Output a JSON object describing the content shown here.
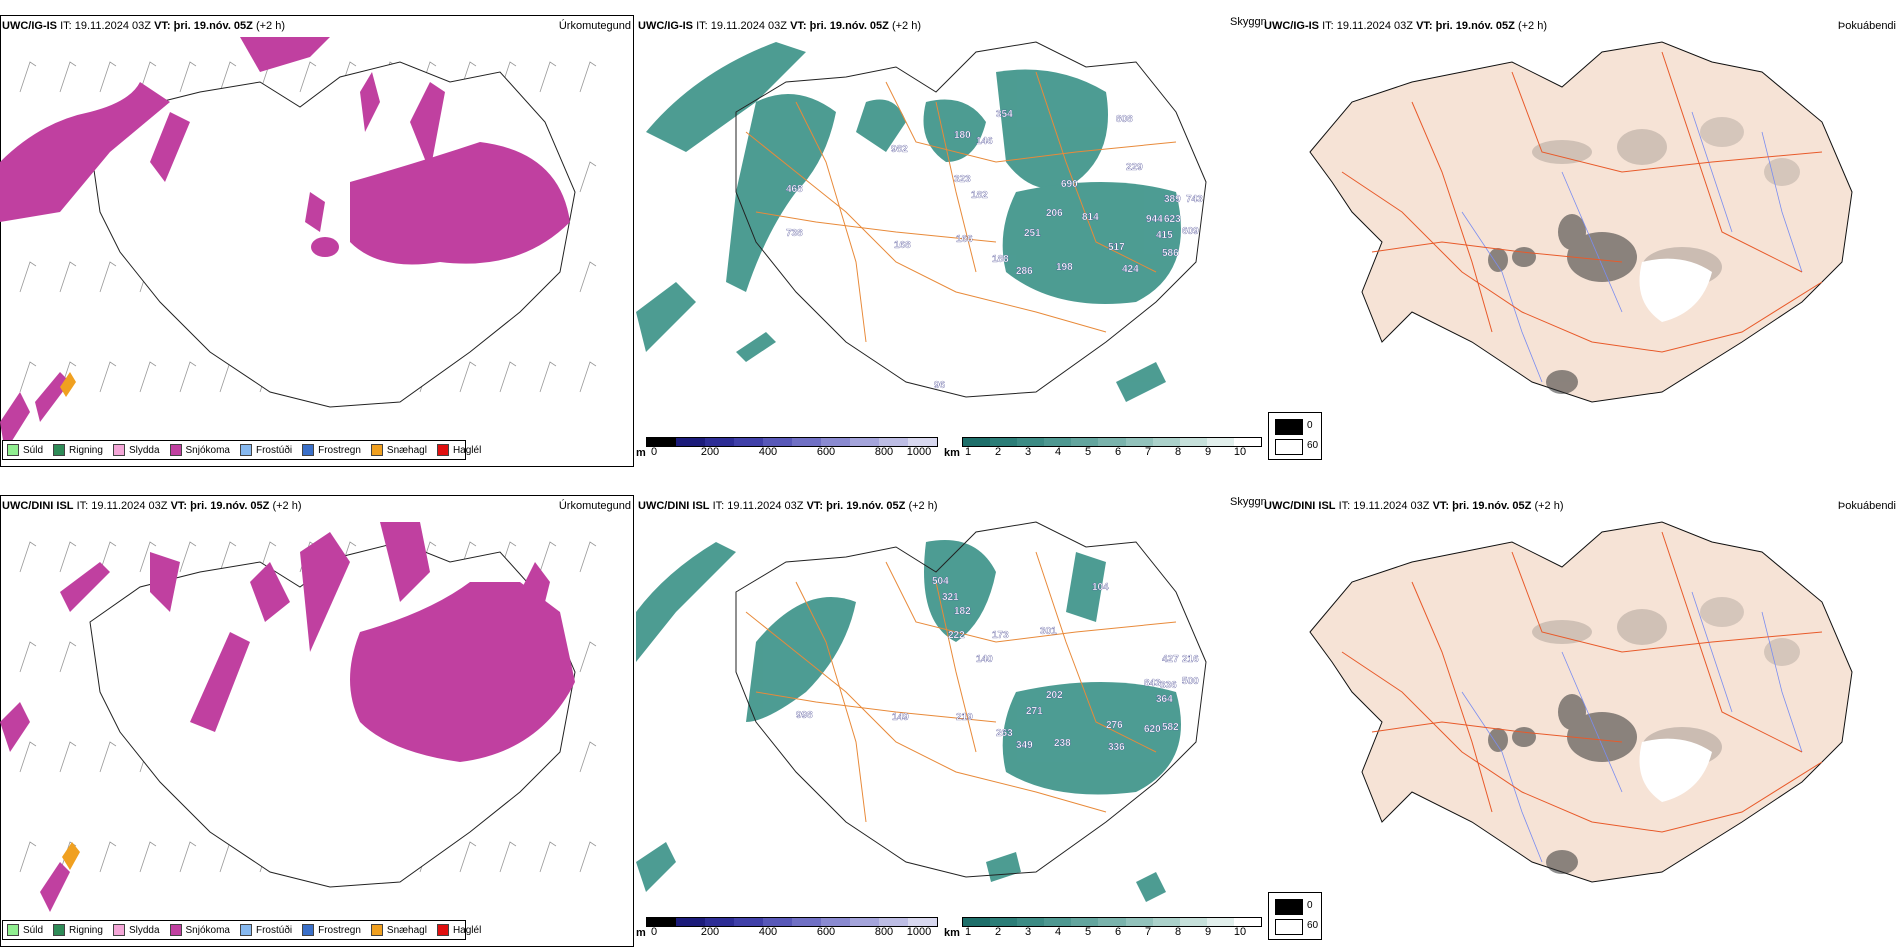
{
  "rows": [
    {
      "model": "UWC/IG-IS",
      "it_label": "IT:",
      "it_value": "19.11.2024 03Z",
      "vt_label": "VT:",
      "vt_value": "þri. 19.nóv. 05Z",
      "offset": "(+2 h)",
      "titles": {
        "precip": "Úrkomutegund",
        "visibility": "Skyggni",
        "fog": "Þokuábendi"
      },
      "cloud_labels": [
        "982",
        "180",
        "146",
        "354",
        "808",
        "468",
        "323",
        "182",
        "690",
        "229",
        "389",
        "743",
        "738",
        "168",
        "166",
        "251",
        "206",
        "814",
        "944",
        "623",
        "188",
        "286",
        "198",
        "517",
        "415",
        "609",
        "424",
        "586",
        "96"
      ]
    },
    {
      "model": "UWC/DINI ISL",
      "it_label": "IT:",
      "it_value": "19.11.2024 03Z",
      "vt_label": "VT:",
      "vt_value": "þri. 19.nóv. 05Z",
      "offset": "(+2 h)",
      "titles": {
        "precip": "Úrkomutegund",
        "visibility": "Skyggni",
        "fog": "Þokuábendi"
      },
      "cloud_labels": [
        "504",
        "321",
        "182",
        "222",
        "173",
        "301",
        "104",
        "140",
        "427",
        "216",
        "998",
        "149",
        "219",
        "271",
        "202",
        "843",
        "336",
        "500",
        "364",
        "263",
        "349",
        "238",
        "276",
        "336",
        "620",
        "582"
      ]
    }
  ],
  "precip_legend": [
    {
      "label": "Súld",
      "color": "#90ee90"
    },
    {
      "label": "Rigning",
      "color": "#2e8b57"
    },
    {
      "label": "Slydda",
      "color": "#f4a6d7"
    },
    {
      "label": "Snjókoma",
      "color": "#c040a0"
    },
    {
      "label": "Frostúði",
      "color": "#87b9f0"
    },
    {
      "label": "Frostregn",
      "color": "#3a6fc8"
    },
    {
      "label": "Snæhagl",
      "color": "#f0a020"
    },
    {
      "label": "Haglél",
      "color": "#e01010"
    }
  ],
  "ceiling_bar": {
    "unit": "m",
    "ticks": [
      "0",
      "200",
      "400",
      "600",
      "800",
      "1000"
    ],
    "colors": [
      "#000000",
      "#1b1b7a",
      "#2d2d95",
      "#4040a8",
      "#5858b8",
      "#7070c4",
      "#8a8ad0",
      "#a4a4da",
      "#bdbde4",
      "#d8d8ef"
    ]
  },
  "visibility_bar": {
    "unit": "km",
    "ticks": [
      "1",
      "2",
      "3",
      "4",
      "5",
      "6",
      "7",
      "8",
      "9",
      "10"
    ],
    "colors": [
      "#1e6f6a",
      "#2b7d77",
      "#3c8b84",
      "#4e9891",
      "#63a59e",
      "#7ab3ac",
      "#92c2bb",
      "#abd1ca",
      "#c6e0da",
      "#e2efec",
      "#ffffff"
    ]
  },
  "fog_key": [
    {
      "label": "0",
      "color": "#000000"
    },
    {
      "label": "60",
      "color": "#ffffff"
    }
  ],
  "colors": {
    "snow": "#c040a0",
    "fog_land": "#f6e3d6",
    "roads": "#e85a2a",
    "rivers": "#7a8cf0",
    "vis": "#2e8b80"
  }
}
